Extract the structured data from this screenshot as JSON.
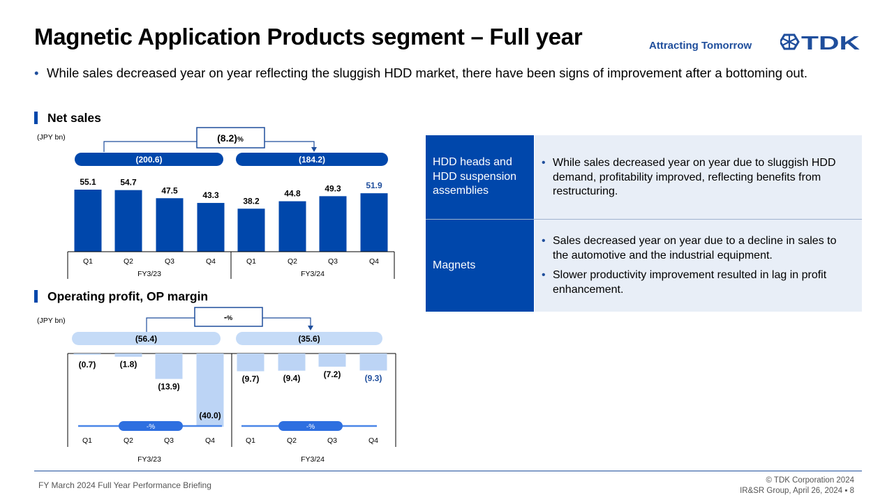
{
  "header": {
    "title": "Magnetic Application Products segment – Full year",
    "tagline": "Attracting Tomorrow",
    "logo_text": "TDK"
  },
  "bullet": "While sales decreased year on year reflecting the sluggish HDD market, there have been signs of improvement after a bottoming out.",
  "net_sales_section": {
    "title": "Net sales",
    "unit": "(JPY bn)"
  },
  "op_section": {
    "title": "Operating profit, OP margin",
    "unit": "(JPY bn)"
  },
  "table": {
    "rows": [
      {
        "header": "HDD heads and HDD suspension assemblies",
        "bullets": [
          "While sales decreased year on year due to sluggish HDD demand, profitability improved, reflecting benefits from restructuring."
        ]
      },
      {
        "header": "Magnets",
        "bullets": [
          "Sales decreased year on year due to a decline in sales to the automotive and the industrial equipment.",
          "Slower productivity improvement resulted in lag in profit enhancement."
        ]
      }
    ]
  },
  "chart_data": [
    {
      "type": "bar",
      "title": "Net sales",
      "unit": "(JPY bn)",
      "categories": [
        "Q1",
        "Q2",
        "Q3",
        "Q4",
        "Q1",
        "Q2",
        "Q3",
        "Q4"
      ],
      "groups": [
        "FY3/23",
        "FY3/24"
      ],
      "values": [
        55.1,
        54.7,
        47.5,
        43.3,
        38.2,
        44.8,
        49.3,
        51.9
      ],
      "labels": [
        "55.1",
        "54.7",
        "47.5",
        "43.3",
        "38.2",
        "44.8",
        "49.3",
        "51.9"
      ],
      "totals": [
        "(200.6)",
        "(184.2)"
      ],
      "change": "(8.2)",
      "change_unit": "%",
      "ylim": [
        0,
        60
      ],
      "colors": {
        "bar": "#0047ab",
        "highlight_label": "#1f4e9c",
        "pill": "#0047ab"
      }
    },
    {
      "type": "bar",
      "title": "Operating profit, OP margin",
      "unit": "(JPY bn)",
      "categories": [
        "Q1",
        "Q2",
        "Q3",
        "Q4",
        "Q1",
        "Q2",
        "Q3",
        "Q4"
      ],
      "groups": [
        "FY3/23",
        "FY3/24"
      ],
      "values": [
        -0.7,
        -1.8,
        -13.9,
        -40.0,
        -9.7,
        -9.4,
        -7.2,
        -9.3
      ],
      "labels": [
        "(0.7)",
        "(1.8)",
        "(13.9)",
        "(40.0)",
        "(9.7)",
        "(9.4)",
        "(7.2)",
        "(9.3)"
      ],
      "totals": [
        "(56.4)",
        "(35.6)"
      ],
      "change": "-",
      "change_unit": "%",
      "margin_labels": [
        "-%",
        "-%"
      ],
      "ylim": [
        -42,
        0
      ],
      "colors": {
        "bar": "#bcd4f5",
        "pill": "#c5dbf7",
        "margin_line": "#4a86e8",
        "margin_pill": "#2e6fe0",
        "highlight_label": "#1f4e9c"
      }
    }
  ],
  "footer": {
    "left": "FY March 2024 Full Year Performance Briefing",
    "copyright": "© TDK Corporation 2024",
    "group_date": "IR&SR Group, April 26, 2024",
    "separator": "▪",
    "page": "8"
  }
}
